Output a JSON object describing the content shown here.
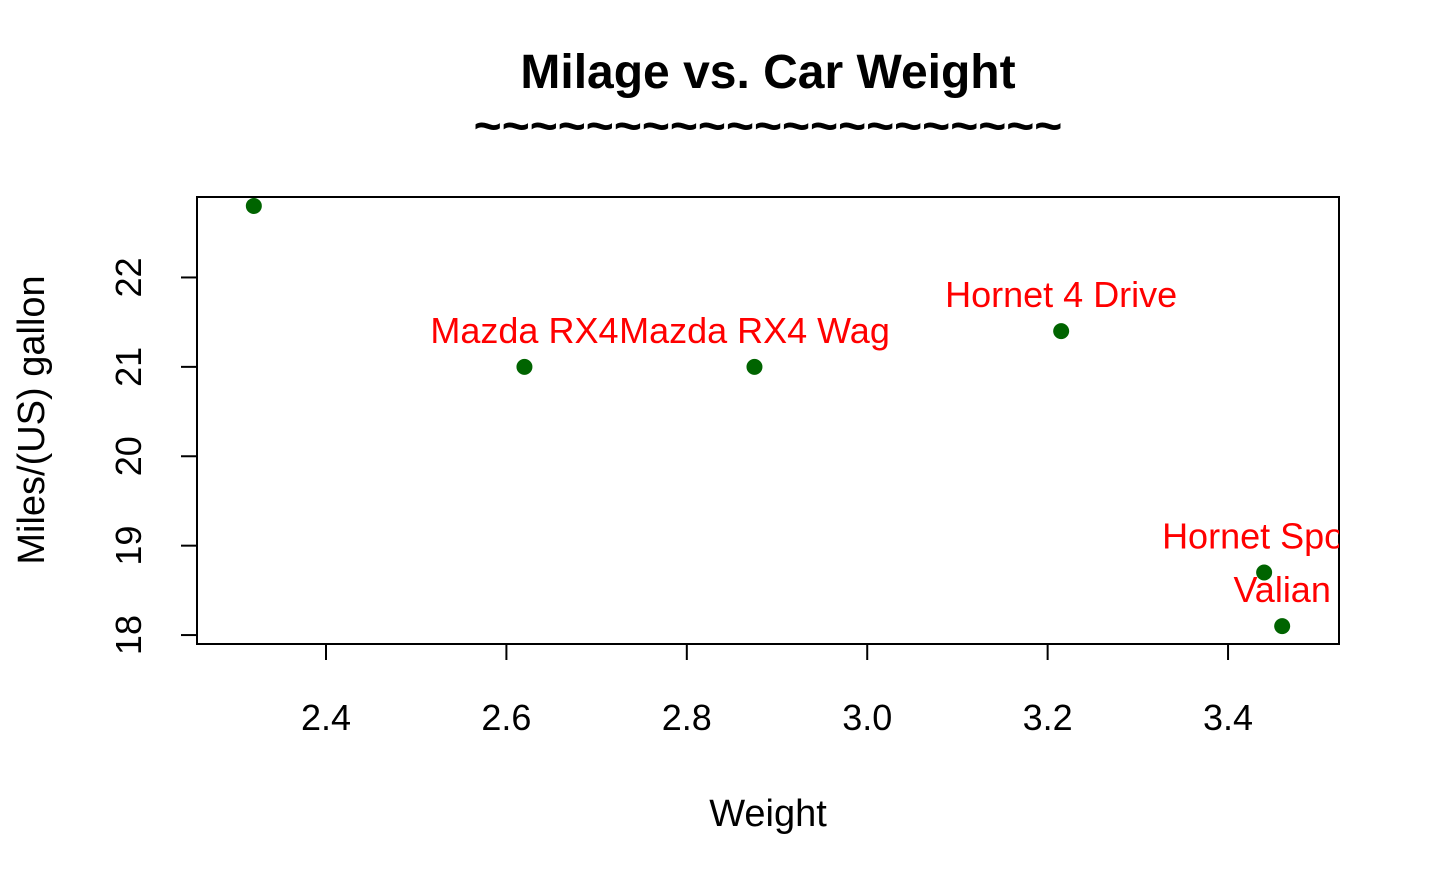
{
  "colors": {
    "point": "#006400",
    "label": "#FF0000",
    "axis": "#000000",
    "background": "#FFFFFF"
  },
  "chart_data": {
    "type": "scatter",
    "title": "Milage vs. Car Weight",
    "subtitle": "~~~~~~~~~~~~~~~~~~~~~",
    "xlabel": "Weight",
    "ylabel": "Miles/(US) gallon",
    "xlim": [
      2.257,
      3.523
    ],
    "ylim": [
      17.9,
      22.9
    ],
    "xticks": [
      2.4,
      2.6,
      2.8,
      3.0,
      3.2,
      3.4
    ],
    "xtick_labels": [
      "2.4",
      "2.6",
      "2.8",
      "3.0",
      "3.2",
      "3.4"
    ],
    "yticks": [
      18,
      19,
      20,
      21,
      22
    ],
    "ytick_labels": [
      "18",
      "19",
      "20",
      "21",
      "22"
    ],
    "grid": false,
    "legend": "none",
    "points": [
      {
        "x": 2.62,
        "y": 21.0,
        "label": "Mazda RX4"
      },
      {
        "x": 2.875,
        "y": 21.0,
        "label": "Mazda RX4 Wag"
      },
      {
        "x": 2.32,
        "y": 22.8,
        "label": ""
      },
      {
        "x": 3.215,
        "y": 21.4,
        "label": "Hornet 4 Drive"
      },
      {
        "x": 3.44,
        "y": 18.7,
        "label": "Hornet Sport"
      },
      {
        "x": 3.46,
        "y": 18.1,
        "label": "Valian"
      }
    ]
  }
}
